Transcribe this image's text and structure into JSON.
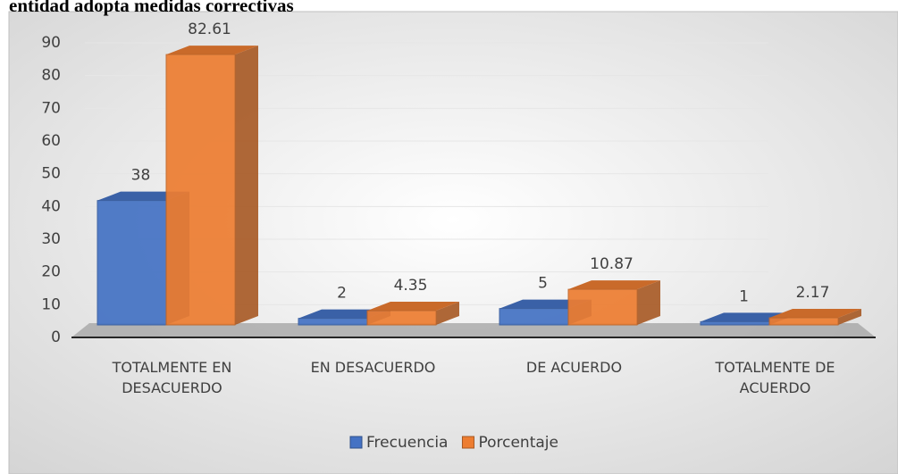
{
  "chart_data": {
    "type": "bar3d",
    "title": "entidad adopta medidas correctivas",
    "categories": [
      "TOTALMENTE EN DESACUERDO",
      "EN DESACUERDO",
      "DE ACUERDO",
      "TOTALMENTE DE ACUERDO"
    ],
    "series": [
      {
        "name": "Frecuencia",
        "color": "#4472c4",
        "values": [
          38,
          2,
          5,
          1
        ]
      },
      {
        "name": "Porcentaje",
        "color": "#ed7d31",
        "values": [
          82.61,
          4.35,
          10.87,
          2.17
        ]
      }
    ],
    "ylim": [
      0,
      90
    ],
    "yticks": [
      0,
      10,
      20,
      30,
      40,
      50,
      60,
      70,
      80,
      90
    ],
    "grid": true,
    "legend": "bottom"
  }
}
